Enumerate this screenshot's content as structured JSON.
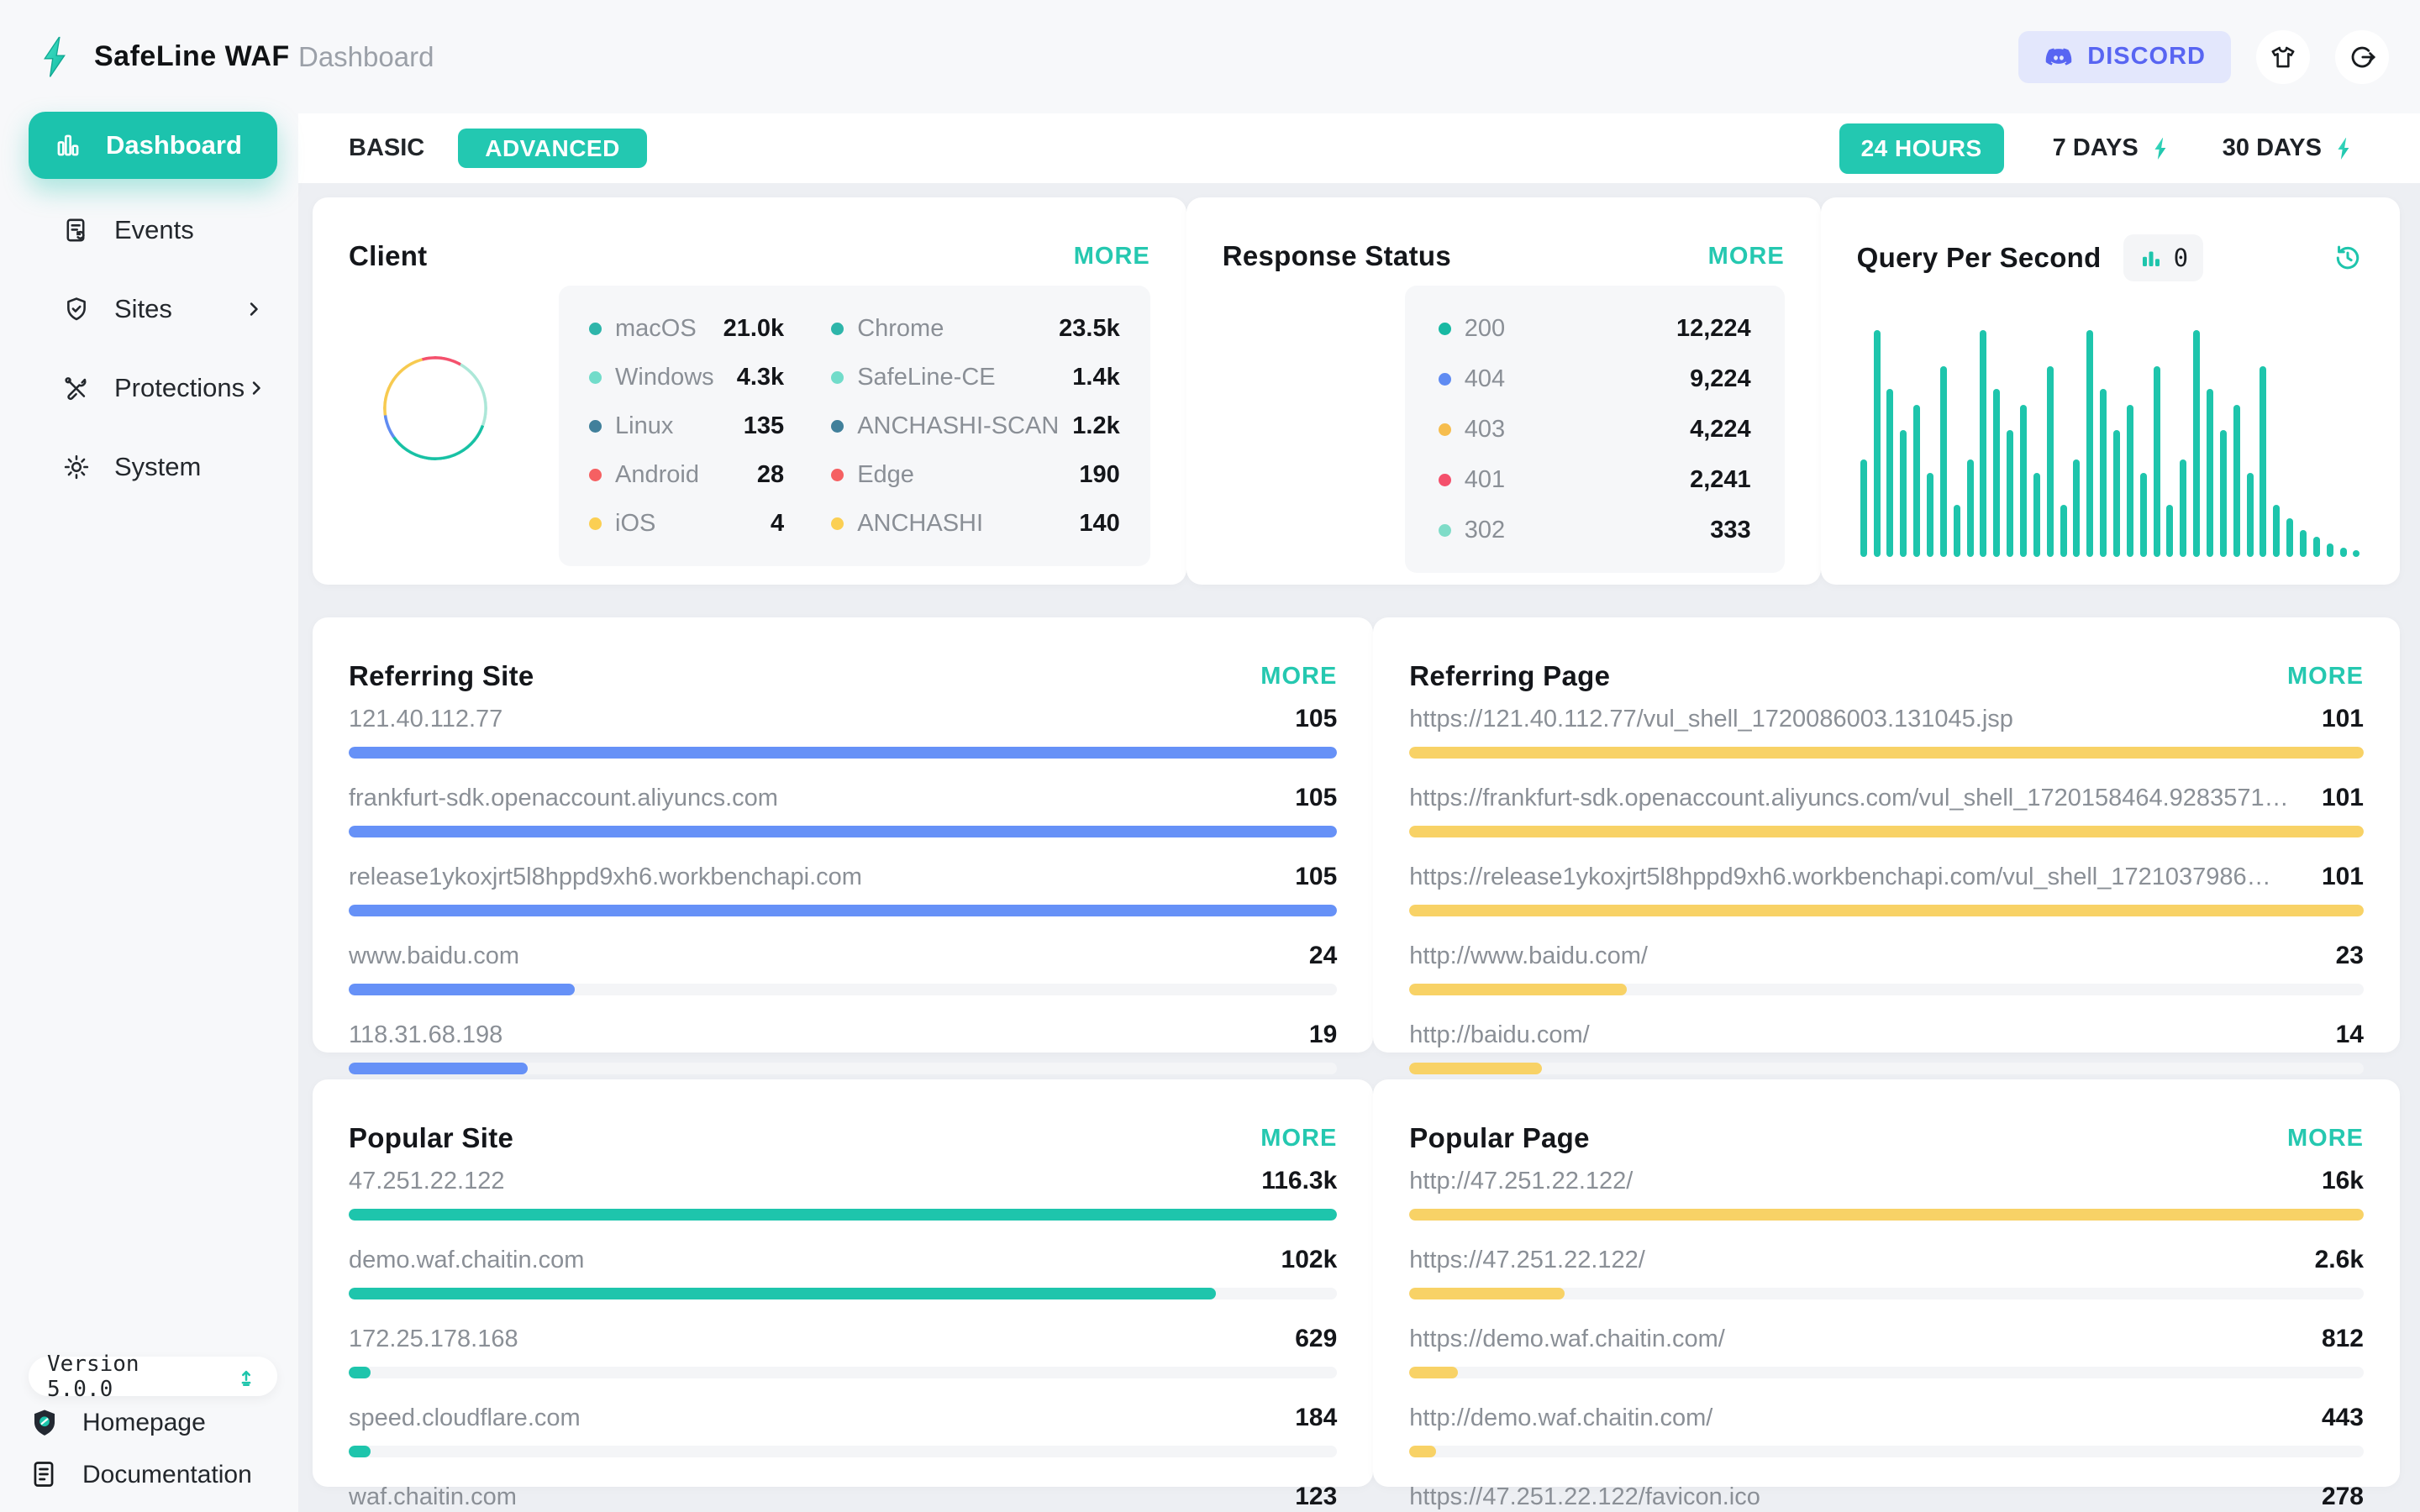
{
  "app": {
    "name": "SafeLine WAF",
    "breadcrumb": "Dashboard",
    "discord_label": "DISCORD",
    "version_label": "Version 5.0.0"
  },
  "sidebar": {
    "items": [
      {
        "label": "Dashboard"
      },
      {
        "label": "Events"
      },
      {
        "label": "Sites"
      },
      {
        "label": "Protections"
      },
      {
        "label": "System"
      }
    ],
    "footer_items": [
      {
        "label": "Homepage"
      },
      {
        "label": "Documentation"
      }
    ]
  },
  "toolbar": {
    "tab_basic": "BASIC",
    "tab_advanced": "ADVANCED",
    "range_24h": "24 HOURS",
    "range_7d": "7 DAYS",
    "range_30d": "30 DAYS"
  },
  "colors": {
    "accent_teal": "#1cc3ad",
    "discord": "#5865f2",
    "bar_blue": "#6691f7",
    "bar_yellow": "#f8d266",
    "bar_teal": "#1ec5ac"
  },
  "cards": {
    "client": {
      "title": "Client",
      "more": "MORE",
      "os": [
        {
          "label": "macOS",
          "value": "21.0k",
          "color": "#2eb5aa"
        },
        {
          "label": "Windows",
          "value": "4.3k",
          "color": "#72dcca"
        },
        {
          "label": "Linux",
          "value": "135",
          "color": "#41809b"
        },
        {
          "label": "Android",
          "value": "28",
          "color": "#f56062"
        },
        {
          "label": "iOS",
          "value": "4",
          "color": "#fbcf53"
        }
      ],
      "browsers": [
        {
          "label": "Chrome",
          "value": "23.5k",
          "color": "#2eb5aa"
        },
        {
          "label": "SafeLine-CE",
          "value": "1.4k",
          "color": "#72dcca"
        },
        {
          "label": "ANCHASHI-SCAN",
          "value": "1.2k",
          "color": "#41809b"
        },
        {
          "label": "Edge",
          "value": "190",
          "color": "#f56062"
        },
        {
          "label": "ANCHASHI",
          "value": "140",
          "color": "#fbcf53"
        }
      ]
    },
    "response_status": {
      "title": "Response Status",
      "more": "MORE",
      "items": [
        {
          "label": "200",
          "value": "12,224",
          "color": "#18b9a3"
        },
        {
          "label": "404",
          "value": "9,224",
          "color": "#5f8bf2"
        },
        {
          "label": "403",
          "value": "4,224",
          "color": "#f6bd4e"
        },
        {
          "label": "401",
          "value": "2,241",
          "color": "#f4506c"
        },
        {
          "label": "302",
          "value": "333",
          "color": "#7fdcc8"
        }
      ]
    },
    "qps": {
      "title": "Query Per Second",
      "badge_value": "0"
    },
    "referring_site": {
      "title": "Referring Site",
      "more": "MORE",
      "bar_color": "#6691f7",
      "items": [
        {
          "label": "121.40.112.77",
          "value": "105",
          "num": 105
        },
        {
          "label": "frankfurt-sdk.openaccount.aliyuncs.com",
          "value": "105",
          "num": 105
        },
        {
          "label": "release1ykoxjrt5l8hppd9xh6.workbenchapi.com",
          "value": "105",
          "num": 105
        },
        {
          "label": "www.baidu.com",
          "value": "24",
          "num": 24
        },
        {
          "label": "118.31.68.198",
          "value": "19",
          "num": 19
        }
      ]
    },
    "referring_page": {
      "title": "Referring Page",
      "more": "MORE",
      "bar_color": "#f8d266",
      "items": [
        {
          "label": "https://121.40.112.77/vul_shell_1720086003.131045.jsp",
          "value": "101",
          "num": 101
        },
        {
          "label": "https://frankfurt-sdk.openaccount.aliyuncs.com/vul_shell_1720158464.9283571…",
          "value": "101",
          "num": 101
        },
        {
          "label": "https://release1ykoxjrt5l8hppd9xh6.workbenchapi.com/vul_shell_1721037986…",
          "value": "101",
          "num": 101
        },
        {
          "label": "http://www.baidu.com/",
          "value": "23",
          "num": 23
        },
        {
          "label": "http://baidu.com/",
          "value": "14",
          "num": 14
        }
      ]
    },
    "popular_site": {
      "title": "Popular Site",
      "more": "MORE",
      "bar_color": "#1ec5ac",
      "items": [
        {
          "label": "47.251.22.122",
          "value": "116.3k",
          "num": 116300
        },
        {
          "label": "demo.waf.chaitin.com",
          "value": "102k",
          "num": 102000
        },
        {
          "label": "172.25.178.168",
          "value": "629",
          "num": 629
        },
        {
          "label": "speed.cloudflare.com",
          "value": "184",
          "num": 184
        },
        {
          "label": "waf.chaitin.com",
          "value": "123",
          "num": 123
        }
      ]
    },
    "popular_page": {
      "title": "Popular Page",
      "more": "MORE",
      "bar_color": "#f8d266",
      "items": [
        {
          "label": "http://47.251.22.122/",
          "value": "16k",
          "num": 16000
        },
        {
          "label": "https://47.251.22.122/",
          "value": "2.6k",
          "num": 2600
        },
        {
          "label": "https://demo.waf.chaitin.com/",
          "value": "812",
          "num": 812
        },
        {
          "label": "http://demo.waf.chaitin.com/",
          "value": "443",
          "num": 443
        },
        {
          "label": "https://47.251.22.122/favicon.ico",
          "value": "278",
          "num": 278
        }
      ]
    }
  },
  "chart_data": {
    "client_donut": {
      "type": "pie",
      "title": "Client",
      "legend_position": "right",
      "rings": {
        "outer": {
          "series": [
            {
              "name": "Chrome",
              "value": 23500
            },
            {
              "name": "SafeLine-CE",
              "value": 1400
            },
            {
              "name": "ANCHASHI-SCAN",
              "value": 1200
            },
            {
              "name": "Edge",
              "value": 190
            },
            {
              "name": "ANCHASHI",
              "value": 140
            }
          ],
          "display_segments": [
            {
              "color": "#f4506c",
              "from": 0,
              "to": 30
            },
            {
              "color": "#ace7d8",
              "from": 30,
              "to": 80
            },
            {
              "color": "#17c1a4",
              "from": 80,
              "to": 240
            },
            {
              "color": "#5f8bf2",
              "from": 240,
              "to": 295
            },
            {
              "color": "#f7ca4f",
              "from": 295,
              "to": 325
            },
            {
              "color": "#f4506c",
              "from": 325,
              "to": 360
            }
          ]
        },
        "inner": {
          "series": [
            {
              "name": "macOS",
              "value": 21000
            },
            {
              "name": "Windows",
              "value": 4300
            },
            {
              "name": "Linux",
              "value": 135
            },
            {
              "name": "Android",
              "value": 28
            },
            {
              "name": "iOS",
              "value": 4
            }
          ],
          "display_segments": [
            {
              "color": "#f4506c",
              "from": 0,
              "to": 30
            },
            {
              "color": "#ace7d8",
              "from": 30,
              "to": 110
            },
            {
              "color": "#17c1a4",
              "from": 110,
              "to": 235
            },
            {
              "color": "#5f8bf2",
              "from": 235,
              "to": 262
            },
            {
              "color": "#f7ca4f",
              "from": 262,
              "to": 345
            },
            {
              "color": "#f4506c",
              "from": 345,
              "to": 360
            }
          ]
        }
      }
    },
    "response_donut": {
      "type": "pie",
      "title": "Response Status",
      "legend_position": "right",
      "series": [
        {
          "name": "200",
          "value": 12224
        },
        {
          "name": "404",
          "value": 9224
        },
        {
          "name": "403",
          "value": 4224
        },
        {
          "name": "401",
          "value": 2241
        },
        {
          "name": "302",
          "value": 333
        }
      ],
      "display_segments": [
        {
          "color": "#f4506c",
          "from": 0,
          "to": 20
        },
        {
          "color": "#9fe2d2",
          "from": 20,
          "to": 62
        },
        {
          "color": "#17c1a4",
          "from": 62,
          "to": 250
        },
        {
          "color": "#5f8bf2",
          "from": 250,
          "to": 292
        },
        {
          "color": "#f7ca4f",
          "from": 292,
          "to": 335
        },
        {
          "color": "#f4506c",
          "from": 335,
          "to": 360
        }
      ]
    },
    "qps": {
      "type": "bar",
      "title": "Query Per Second",
      "xlabel": "",
      "ylabel": "",
      "grid": false,
      "color": "#1ec5ac",
      "current_value": 0,
      "values_relative": [
        43,
        100,
        74,
        56,
        67,
        37,
        84,
        23,
        43,
        100,
        74,
        56,
        67,
        37,
        84,
        23,
        43,
        100,
        74,
        56,
        67,
        37,
        84,
        23,
        43,
        100,
        74,
        56,
        67,
        37,
        84,
        23,
        17,
        12,
        9,
        6,
        4,
        3
      ]
    }
  }
}
